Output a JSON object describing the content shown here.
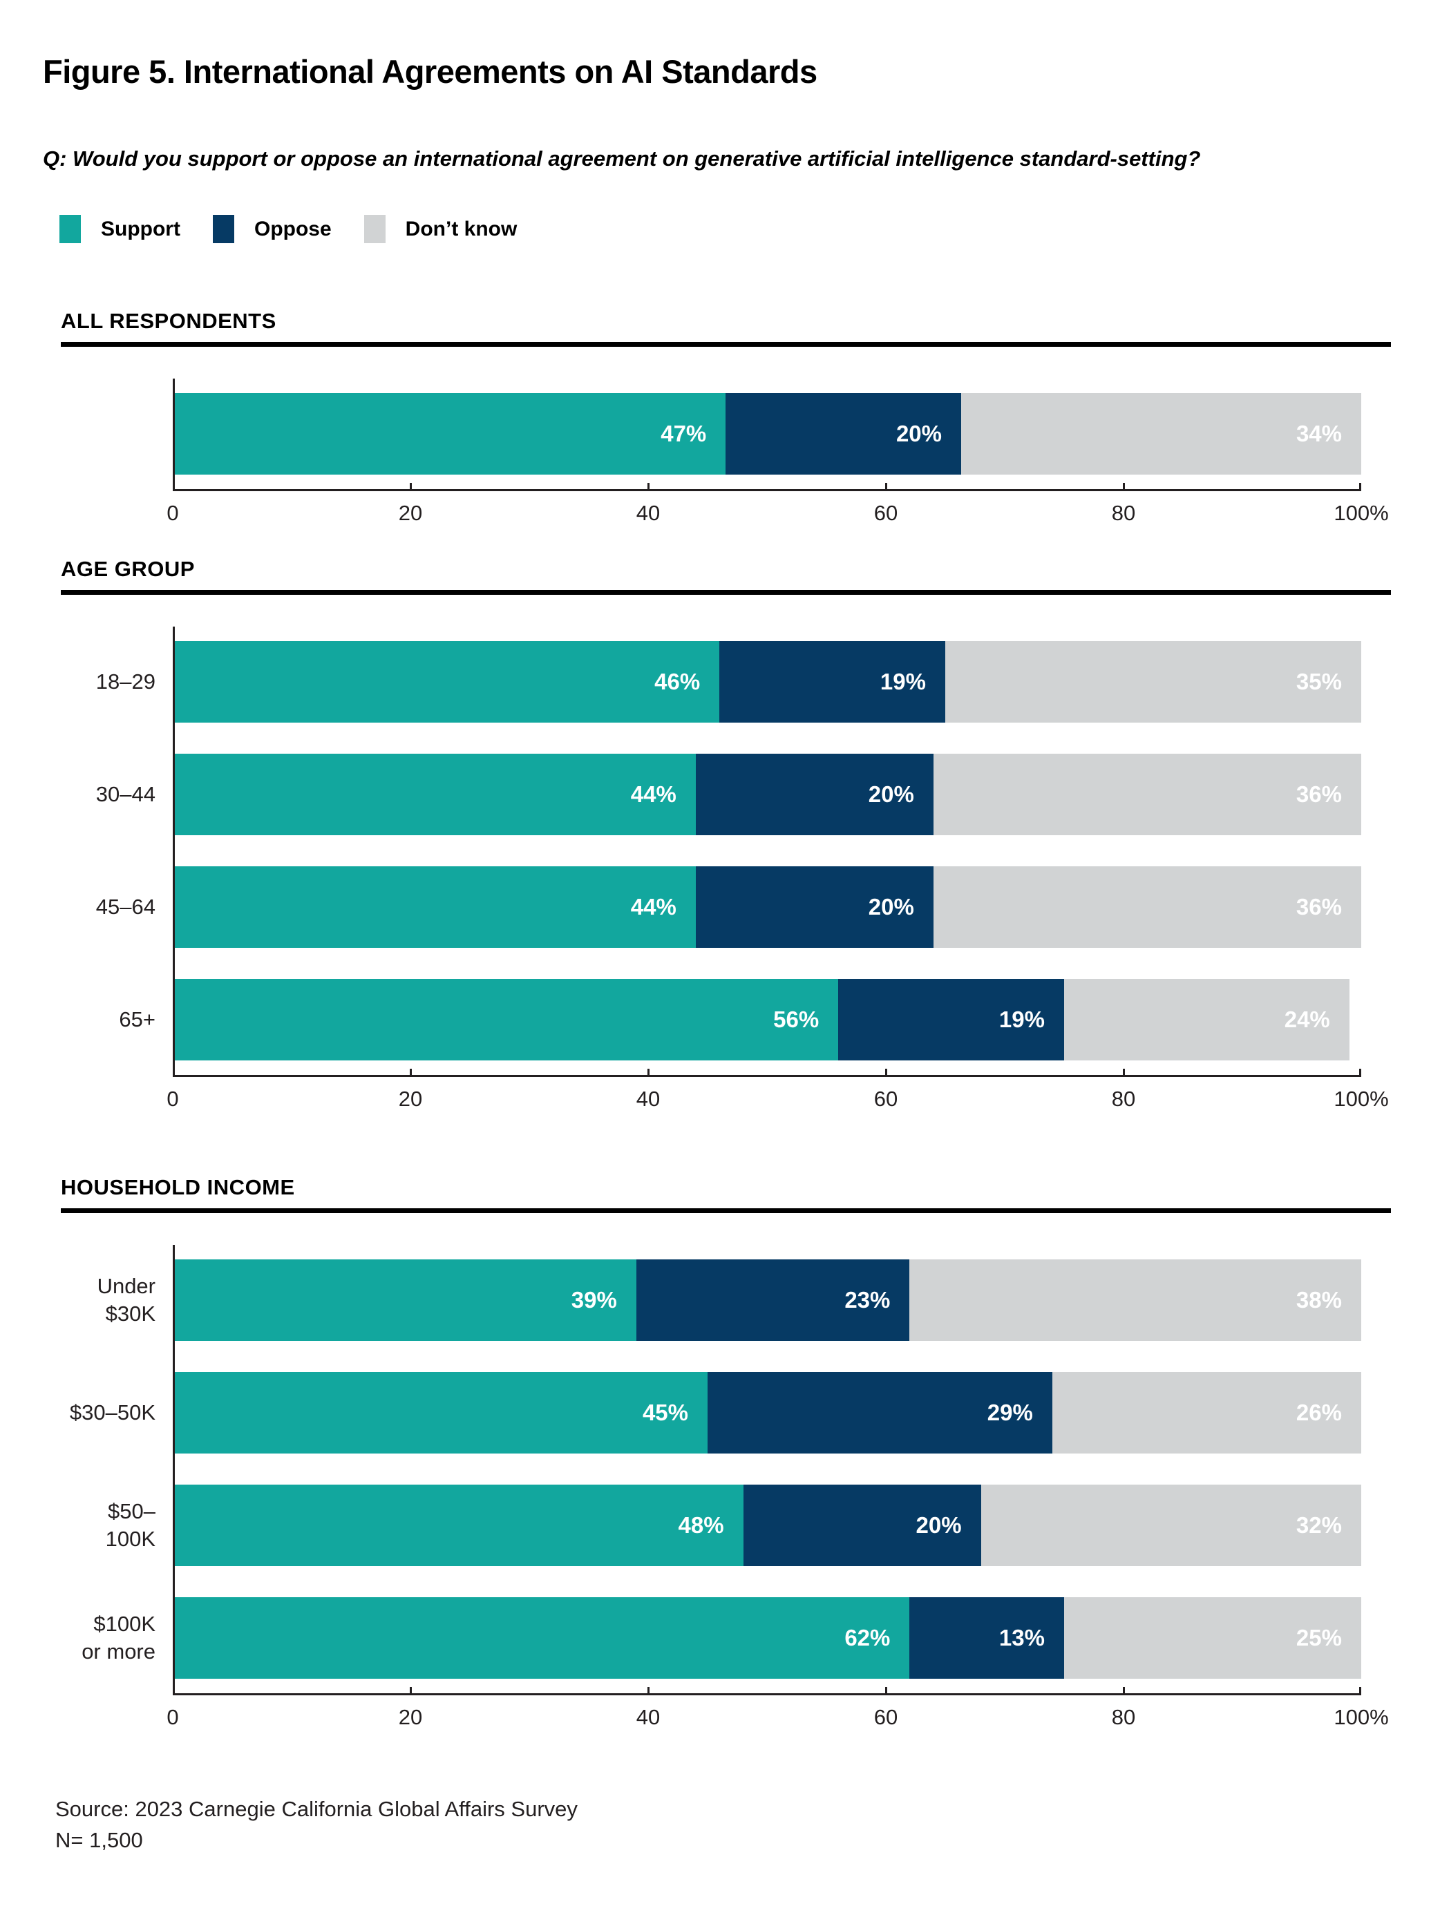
{
  "figure": {
    "title": "Figure 5. International Agreements on AI Standards",
    "question": "Q: Would you support or oppose an international agreement on generative artificial intelligence standard-setting?",
    "source_line1": "Source: 2023 Carnegie California Global Affairs Survey",
    "source_line2": "N= 1,500"
  },
  "legend": [
    {
      "label": "Support",
      "color": "#12A79E"
    },
    {
      "label": "Oppose",
      "color": "#063A64"
    },
    {
      "label": "Don’t know",
      "color": "#D1D3D4"
    }
  ],
  "colors": {
    "bar_value_text": "#ffffff",
    "axis": "#231F20",
    "section_rule": "#000000"
  },
  "axis": {
    "min": 0,
    "max": 100,
    "ticks": [
      {
        "pos": 0,
        "label": "0"
      },
      {
        "pos": 20,
        "label": "20"
      },
      {
        "pos": 40,
        "label": "40"
      },
      {
        "pos": 60,
        "label": "60"
      },
      {
        "pos": 80,
        "label": "80"
      },
      {
        "pos": 100,
        "label": "100%"
      }
    ]
  },
  "chart_data": [
    {
      "type": "bar",
      "orientation": "horizontal",
      "stacked": true,
      "section": "ALL RESPONDENTS",
      "categories": [
        []
      ],
      "series": [
        {
          "name": "Support",
          "values": [
            47
          ]
        },
        {
          "name": "Oppose",
          "values": [
            20
          ]
        },
        {
          "name": "Don’t know",
          "values": [
            34
          ]
        }
      ],
      "xlim": [
        0,
        100
      ]
    },
    {
      "type": "bar",
      "orientation": "horizontal",
      "stacked": true,
      "section": "AGE GROUP",
      "categories": [
        [
          "18–29"
        ],
        [
          "30–44"
        ],
        [
          "45–64"
        ],
        [
          "65+"
        ]
      ],
      "series": [
        {
          "name": "Support",
          "values": [
            46,
            44,
            44,
            56
          ]
        },
        {
          "name": "Oppose",
          "values": [
            19,
            20,
            20,
            19
          ]
        },
        {
          "name": "Don’t know",
          "values": [
            35,
            36,
            36,
            24
          ]
        }
      ],
      "xlim": [
        0,
        100
      ]
    },
    {
      "type": "bar",
      "orientation": "horizontal",
      "stacked": true,
      "section": "HOUSEHOLD INCOME",
      "categories": [
        [
          "Under $30K"
        ],
        [
          "$30–50K"
        ],
        [
          "$50–100K"
        ],
        [
          "$100K",
          "or more"
        ]
      ],
      "series": [
        {
          "name": "Support",
          "values": [
            39,
            45,
            48,
            62
          ]
        },
        {
          "name": "Oppose",
          "values": [
            23,
            29,
            20,
            13
          ]
        },
        {
          "name": "Don’t know",
          "values": [
            38,
            26,
            32,
            25
          ]
        }
      ],
      "xlim": [
        0,
        100
      ]
    }
  ]
}
